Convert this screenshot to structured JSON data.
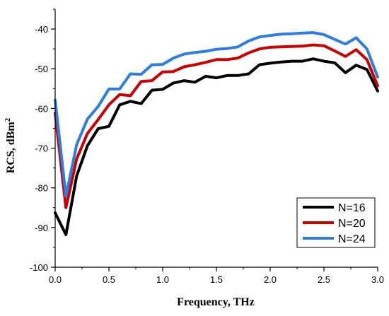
{
  "chart_data": {
    "type": "line",
    "xlabel": "Frequency, THz",
    "ylabel_main": "RCS, dBm",
    "ylabel_sup": "2",
    "xlim": [
      0.0,
      3.0
    ],
    "ylim": [
      -100,
      -35
    ],
    "xticks": [
      "0.0",
      "0.5",
      "1.0",
      "1.5",
      "2.0",
      "2.5",
      "3.0"
    ],
    "yticks": [
      "-40",
      "-50",
      "-60",
      "-70",
      "-80",
      "-90",
      "-100"
    ],
    "grid": false,
    "legend_position": "bottom-right",
    "x": [
      0.0,
      0.1,
      0.2,
      0.3,
      0.4,
      0.5,
      0.6,
      0.7,
      0.8,
      0.9,
      1.0,
      1.1,
      1.2,
      1.3,
      1.4,
      1.5,
      1.6,
      1.7,
      1.8,
      1.9,
      2.0,
      2.1,
      2.2,
      2.3,
      2.4,
      2.5,
      2.6,
      2.7,
      2.8,
      2.9,
      3.0
    ],
    "series": [
      {
        "name": "N=16",
        "color": "#000000",
        "values": [
          -86.3,
          -91.8,
          -77.0,
          -69.4,
          -65.1,
          -64.5,
          -59.1,
          -58.2,
          -58.8,
          -55.4,
          -55.2,
          -53.6,
          -53.0,
          -53.4,
          -51.9,
          -52.3,
          -51.7,
          -51.7,
          -51.3,
          -49.0,
          -48.6,
          -48.3,
          -48.1,
          -48.1,
          -47.5,
          -48.1,
          -48.5,
          -51.0,
          -49.1,
          -50.2,
          -55.6
        ]
      },
      {
        "name": "N=20",
        "color": "#cc0000",
        "values": [
          -61.2,
          -85.0,
          -72.7,
          -66.3,
          -62.8,
          -59.1,
          -56.5,
          -56.8,
          -53.2,
          -53.0,
          -50.8,
          -50.7,
          -49.5,
          -49.0,
          -48.4,
          -47.7,
          -47.7,
          -47.3,
          -46.0,
          -45.0,
          -44.6,
          -44.5,
          -44.4,
          -44.3,
          -44.0,
          -44.2,
          -45.5,
          -46.9,
          -45.2,
          -47.7,
          -54.3
        ]
      },
      {
        "name": "N=24",
        "color": "#2e7de1",
        "values": [
          -57.9,
          -82.1,
          -69.1,
          -62.7,
          -59.5,
          -55.1,
          -55.1,
          -51.3,
          -51.4,
          -49.0,
          -48.9,
          -47.3,
          -46.3,
          -45.9,
          -45.6,
          -45.1,
          -44.9,
          -44.5,
          -43.0,
          -42.0,
          -41.6,
          -41.3,
          -41.2,
          -41.0,
          -40.9,
          -41.4,
          -42.6,
          -43.8,
          -42.2,
          -45.0,
          -52.1
        ]
      }
    ]
  }
}
